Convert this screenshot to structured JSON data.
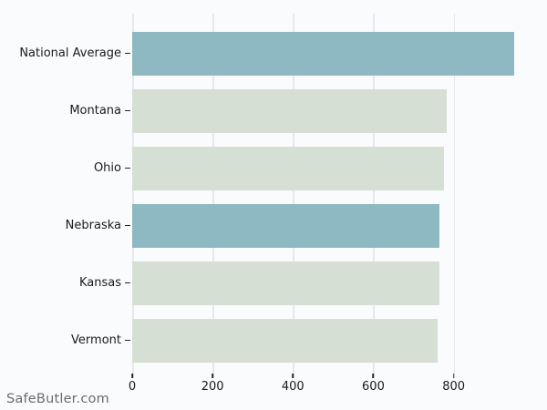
{
  "watermark": "SafeButler.com",
  "colors": {
    "background": "#fafbfd",
    "gridline": "#e7e8ee",
    "bar_teal": "#8fb9c2",
    "bar_green": "#d5dfd3",
    "text": "#1a1a1a",
    "tick": "#262626",
    "watermark_text": "#6b6b6b"
  },
  "chart_data": {
    "type": "bar",
    "orientation": "horizontal",
    "title": "",
    "xlabel": "",
    "ylabel": "",
    "categories": [
      "National Average",
      "Montana",
      "Ohio",
      "Nebraska",
      "Kansas",
      "Vermont"
    ],
    "values": [
      950,
      783,
      775,
      765,
      764,
      761
    ],
    "bar_colors": [
      "#8fb9c2",
      "#d5dfd3",
      "#d5dfd3",
      "#8fb9c2",
      "#d5dfd3",
      "#d5dfd3"
    ],
    "xlim": [
      0,
      1030
    ],
    "xticks": [
      0,
      200,
      400,
      600,
      800
    ],
    "grid": true,
    "legend": null
  }
}
